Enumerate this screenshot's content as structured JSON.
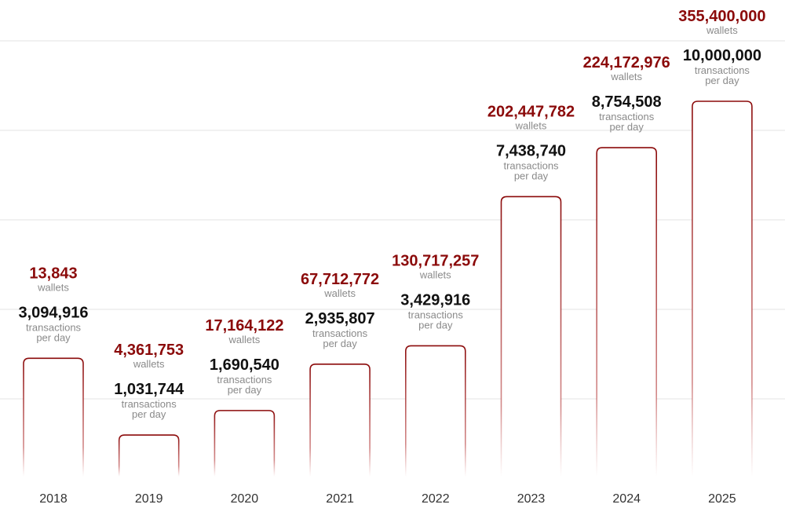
{
  "chart_data": {
    "type": "bar",
    "categories": [
      "2018",
      "2019",
      "2020",
      "2021",
      "2022",
      "2023",
      "2024",
      "2025"
    ],
    "series": [
      {
        "values": [
          3094916,
          1031744,
          1690540,
          2935807,
          3429916,
          7438740,
          8754508,
          10000000
        ]
      },
      {
        "values": [
          13843,
          4361753,
          17164122,
          67712772,
          130717257,
          202447782,
          224172976,
          355400000
        ]
      }
    ],
    "labels": {
      "transactions": [
        {
          "value": "3,094,916",
          "line1": "transactions",
          "line2": "per day"
        },
        {
          "value": "1,031,744",
          "line1": "transactions",
          "line2": "per day"
        },
        {
          "value": "1,690,540",
          "line1": "transactions",
          "line2": "per day"
        },
        {
          "value": "2,935,807",
          "line1": "transactions",
          "line2": "per day"
        },
        {
          "value": "3,429,916",
          "line1": "transactions",
          "line2": "per day"
        },
        {
          "value": "7,438,740",
          "line1": "transactions",
          "line2": "per day"
        },
        {
          "value": "8,754,508",
          "line1": "transactions",
          "line2": "per day"
        },
        {
          "value": "10,000,000",
          "line1": "transactions",
          "line2": "per day"
        }
      ],
      "wallets": [
        {
          "value": "13,843",
          "unit": "wallets"
        },
        {
          "value": "4,361,753",
          "unit": "wallets"
        },
        {
          "value": "17,164,122",
          "unit": "wallets"
        },
        {
          "value": "67,712,772",
          "unit": "wallets"
        },
        {
          "value": "130,717,257",
          "unit": "wallets"
        },
        {
          "value": "202,447,782",
          "unit": "wallets"
        },
        {
          "value": "224,172,976",
          "unit": "wallets"
        },
        {
          "value": "355,400,000",
          "unit": "wallets"
        }
      ]
    },
    "grid": true,
    "legend": "none",
    "colors": {
      "bar_outline": "#8b0a0a",
      "wallet_text": "#8b0a0a",
      "tx_text": "#111111",
      "sub_text": "#8a8a8a",
      "grid": "#e3e3e3"
    }
  }
}
